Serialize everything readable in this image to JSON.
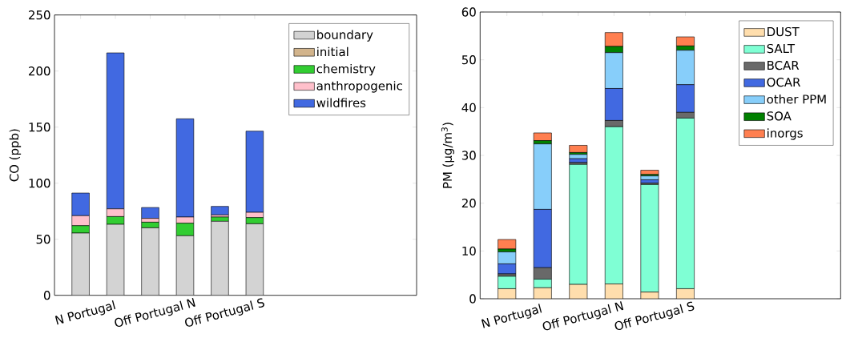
{
  "chart_data": [
    {
      "type": "bar",
      "stacked": true,
      "ylabel": "CO (ppb)",
      "categories": [
        "N Portugal",
        null,
        "Off Portugal N",
        null,
        "Off Portugal S",
        null
      ],
      "ylim": [
        0,
        250
      ],
      "yticks": [
        0,
        50,
        100,
        150,
        200,
        250
      ],
      "legend": "top right",
      "series": [
        {
          "name": "boundary",
          "color": "#d3d3d3",
          "values": [
            55.5,
            63.3,
            60.2,
            53.1,
            66.0,
            63.8
          ]
        },
        {
          "name": "initial",
          "color": "#d2b48c",
          "values": [
            0,
            0,
            0,
            0,
            0,
            0
          ]
        },
        {
          "name": "chemistry",
          "color": "#32cd32",
          "values": [
            6.6,
            6.9,
            5.0,
            11.2,
            3.8,
            5.5
          ]
        },
        {
          "name": "anthropogenic",
          "color": "#ffc0cb",
          "values": [
            8.9,
            6.9,
            3.4,
            5.5,
            1.9,
            4.7
          ]
        },
        {
          "name": "wildfires",
          "color": "#4169e1",
          "values": [
            20.2,
            139.1,
            9.7,
            87.6,
            7.6,
            72.4
          ]
        }
      ]
    },
    {
      "type": "bar",
      "stacked": true,
      "ylabel": "PM (μg/m$^{3}$)",
      "categories": [
        "N Portugal",
        null,
        "Off Portugal N",
        null,
        "Off Portugal S",
        null
      ],
      "ylim": [
        0,
        60
      ],
      "yticks": [
        0,
        10,
        20,
        30,
        40,
        50,
        60
      ],
      "legend": "top right",
      "series": [
        {
          "name": "DUST",
          "color": "#ffdead",
          "values": [
            2.1,
            2.3,
            3.0,
            3.1,
            1.4,
            2.1
          ]
        },
        {
          "name": "SALT",
          "color": "#7fffd4",
          "values": [
            2.6,
            1.8,
            25.1,
            32.9,
            22.5,
            35.7
          ]
        },
        {
          "name": "BCAR",
          "color": "#696969",
          "values": [
            0.5,
            2.4,
            0.4,
            1.3,
            0.3,
            1.2
          ]
        },
        {
          "name": "OCAR",
          "color": "#4169e1",
          "values": [
            2.1,
            12.2,
            0.8,
            6.7,
            0.7,
            5.8
          ]
        },
        {
          "name": "other PPM",
          "color": "#87cefa",
          "values": [
            2.5,
            13.7,
            0.9,
            7.5,
            0.8,
            7.2
          ]
        },
        {
          "name": "SOA",
          "color": "#008000",
          "values": [
            0.6,
            0.7,
            0.4,
            1.3,
            0.3,
            0.9
          ]
        },
        {
          "name": "inorgs",
          "color": "#ff7f50",
          "values": [
            2.0,
            1.6,
            1.5,
            2.9,
            0.9,
            1.9
          ]
        }
      ]
    }
  ]
}
